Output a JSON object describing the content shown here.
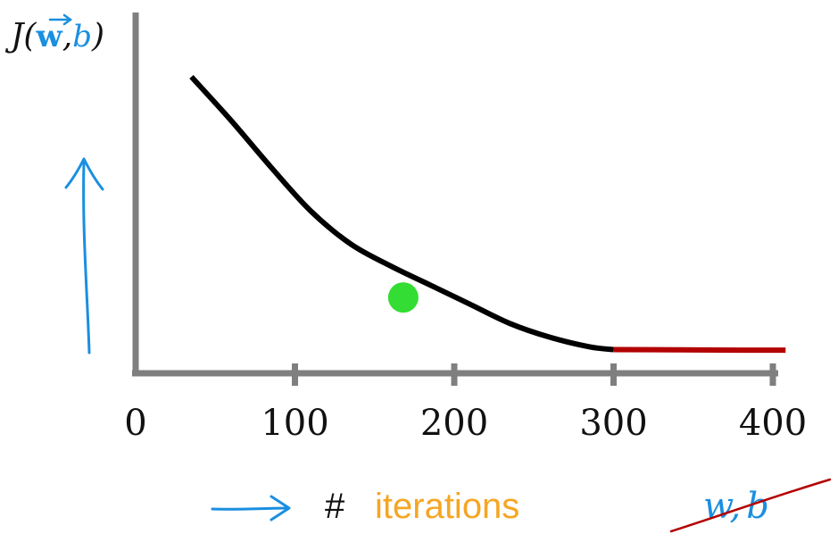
{
  "chart_data": {
    "type": "line",
    "ylabel": {
      "prefix": "J(",
      "w": "w",
      "comma": ",",
      "b": "b",
      "suffix": ")"
    },
    "xlabel": {
      "hash": "#",
      "word": "iterations"
    },
    "x_tick_labels": [
      "0",
      "100",
      "200",
      "300",
      "400"
    ],
    "xlim": [
      0,
      400
    ],
    "series": [
      {
        "x": [
          35,
          60,
          85,
          110,
          135,
          160,
          185,
          210,
          235,
          260,
          285,
          300
        ],
        "y": [
          100,
          84,
          67,
          51,
          39,
          31,
          24,
          17,
          10,
          5,
          1.5,
          0.5
        ]
      },
      {
        "x": [
          300,
          340,
          380,
          408
        ],
        "y": [
          0.5,
          0.4,
          0.3,
          0.3
        ]
      }
    ],
    "highlight_point": {
      "x": 168,
      "y": 19.5
    },
    "annotation_crossed": {
      "w": "w",
      "comma": ",",
      "b": "b"
    }
  },
  "colors": {
    "axis": "#7f7f7f",
    "curve": "#000000",
    "curve_flat": "#b30000",
    "point": "#33dd33",
    "blue_marks": "#1a8fe0",
    "iterations": "#f5a623",
    "strike": "#b30000"
  }
}
